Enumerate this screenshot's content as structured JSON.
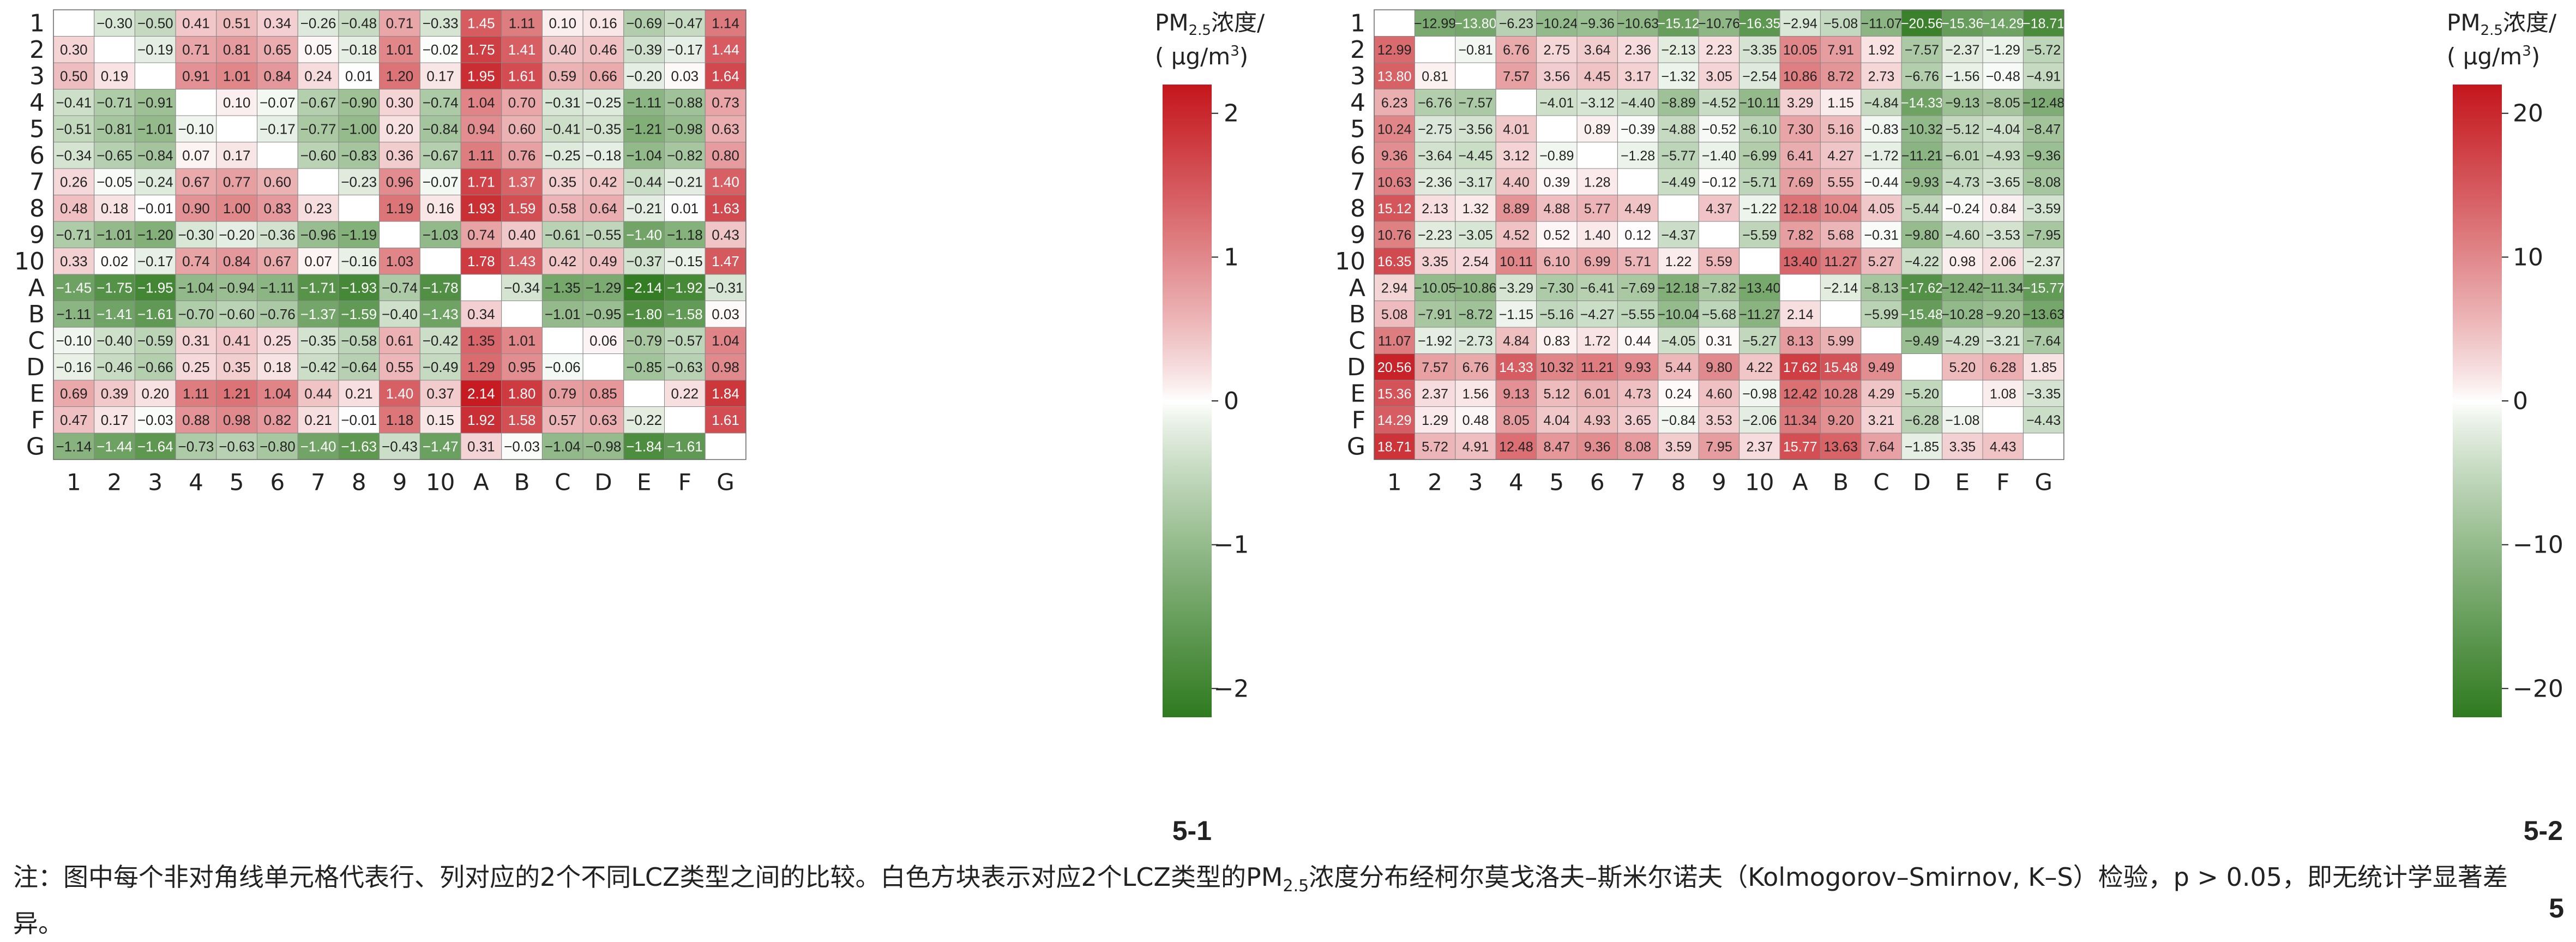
{
  "chart_data": [
    {
      "type": "heatmap",
      "panel_label": "5-1",
      "colorbar_title": "PM2.5浓度/ (μg/m3)",
      "colorbar_ticks": [
        "2",
        "1",
        "0",
        "−1",
        "−2"
      ],
      "colorbar_tick_values": [
        2,
        1,
        0,
        -1,
        -2
      ],
      "vmin": -2.2,
      "vmax": 2.2,
      "row_labels": [
        "1",
        "2",
        "3",
        "4",
        "5",
        "6",
        "7",
        "8",
        "9",
        "10",
        "A",
        "B",
        "C",
        "D",
        "E",
        "F",
        "G"
      ],
      "col_labels": [
        "1",
        "2",
        "3",
        "4",
        "5",
        "6",
        "7",
        "8",
        "9",
        "10",
        "A",
        "B",
        "C",
        "D",
        "E",
        "F",
        "G"
      ],
      "cells": [
        [
          "",
          "−0.30",
          "−0.50",
          "0.41",
          "0.51",
          "0.34",
          "−0.26",
          "−0.48",
          "0.71",
          "−0.33",
          "1.45",
          "1.11",
          "0.10",
          "0.16",
          "−0.69",
          "−0.47",
          "1.14"
        ],
        [
          "0.30",
          "",
          "−0.19",
          "0.71",
          "0.81",
          "0.65",
          "0.05",
          "−0.18",
          "1.01",
          "−0.02",
          "1.75",
          "1.41",
          "0.40",
          "0.46",
          "−0.39",
          "−0.17",
          "1.44"
        ],
        [
          "0.50",
          "0.19",
          "",
          "0.91",
          "1.01",
          "0.84",
          "0.24",
          "0.01",
          "1.20",
          "0.17",
          "1.95",
          "1.61",
          "0.59",
          "0.66",
          "−0.20",
          "0.03",
          "1.64"
        ],
        [
          "−0.41",
          "−0.71",
          "−0.91",
          "",
          "0.10",
          "−0.07",
          "−0.67",
          "−0.90",
          "0.30",
          "−0.74",
          "1.04",
          "0.70",
          "−0.31",
          "−0.25",
          "−1.11",
          "−0.88",
          "0.73"
        ],
        [
          "−0.51",
          "−0.81",
          "−1.01",
          "−0.10",
          "",
          "−0.17",
          "−0.77",
          "−1.00",
          "0.20",
          "−0.84",
          "0.94",
          "0.60",
          "−0.41",
          "−0.35",
          "−1.21",
          "−0.98",
          "0.63"
        ],
        [
          "−0.34",
          "−0.65",
          "−0.84",
          "0.07",
          "0.17",
          "",
          "−0.60",
          "−0.83",
          "0.36",
          "−0.67",
          "1.11",
          "0.76",
          "−0.25",
          "−0.18",
          "−1.04",
          "−0.82",
          "0.80"
        ],
        [
          "0.26",
          "−0.05",
          "−0.24",
          "0.67",
          "0.77",
          "0.60",
          "",
          "−0.23",
          "0.96",
          "−0.07",
          "1.71",
          "1.37",
          "0.35",
          "0.42",
          "−0.44",
          "−0.21",
          "1.40"
        ],
        [
          "0.48",
          "0.18",
          "−0.01",
          "0.90",
          "1.00",
          "0.83",
          "0.23",
          "",
          "1.19",
          "0.16",
          "1.93",
          "1.59",
          "0.58",
          "0.64",
          "−0.21",
          "0.01",
          "1.63"
        ],
        [
          "−0.71",
          "−1.01",
          "−1.20",
          "−0.30",
          "−0.20",
          "−0.36",
          "−0.96",
          "−1.19",
          "",
          "−1.03",
          "0.74",
          "0.40",
          "−0.61",
          "−0.55",
          "−1.40",
          "−1.18",
          "0.43"
        ],
        [
          "0.33",
          "0.02",
          "−0.17",
          "0.74",
          "0.84",
          "0.67",
          "0.07",
          "−0.16",
          "1.03",
          "",
          "1.78",
          "1.43",
          "0.42",
          "0.49",
          "−0.37",
          "−0.15",
          "1.47"
        ],
        [
          "−1.45",
          "−1.75",
          "−1.95",
          "−1.04",
          "−0.94",
          "−1.11",
          "−1.71",
          "−1.93",
          "−0.74",
          "−1.78",
          "",
          "−0.34",
          "−1.35",
          "−1.29",
          "−2.14",
          "−1.92",
          "−0.31"
        ],
        [
          "−1.11",
          "−1.41",
          "−1.61",
          "−0.70",
          "−0.60",
          "−0.76",
          "−1.37",
          "−1.59",
          "−0.40",
          "−1.43",
          "0.34",
          "",
          "−1.01",
          "−0.95",
          "−1.80",
          "−1.58",
          "0.03"
        ],
        [
          "−0.10",
          "−0.40",
          "−0.59",
          "0.31",
          "0.41",
          "0.25",
          "−0.35",
          "−0.58",
          "0.61",
          "−0.42",
          "1.35",
          "1.01",
          "",
          "0.06",
          "−0.79",
          "−0.57",
          "1.04"
        ],
        [
          "−0.16",
          "−0.46",
          "−0.66",
          "0.25",
          "0.35",
          "0.18",
          "−0.42",
          "−0.64",
          "0.55",
          "−0.49",
          "1.29",
          "0.95",
          "−0.06",
          "",
          "−0.85",
          "−0.63",
          "0.98"
        ],
        [
          "0.69",
          "0.39",
          "0.20",
          "1.11",
          "1.21",
          "1.04",
          "0.44",
          "0.21",
          "1.40",
          "0.37",
          "2.14",
          "1.80",
          "0.79",
          "0.85",
          "",
          "0.22",
          "1.84"
        ],
        [
          "0.47",
          "0.17",
          "−0.03",
          "0.88",
          "0.98",
          "0.82",
          "0.21",
          "−0.01",
          "1.18",
          "0.15",
          "1.92",
          "1.58",
          "0.57",
          "0.63",
          "−0.22",
          "",
          "1.61"
        ],
        [
          "−1.14",
          "−1.44",
          "−1.64",
          "−0.73",
          "−0.63",
          "−0.80",
          "−1.40",
          "−1.63",
          "−0.43",
          "−1.47",
          "0.31",
          "−0.03",
          "−1.04",
          "−0.98",
          "−1.84",
          "−1.61",
          ""
        ]
      ]
    },
    {
      "type": "heatmap",
      "panel_label": "5-2",
      "colorbar_title": "PM2.5浓度/ (μg/m3)",
      "colorbar_ticks": [
        "20",
        "10",
        "0",
        "−10",
        "−20"
      ],
      "colorbar_tick_values": [
        20,
        10,
        0,
        -10,
        -20
      ],
      "vmin": -22,
      "vmax": 22,
      "row_labels": [
        "1",
        "2",
        "3",
        "4",
        "5",
        "6",
        "7",
        "8",
        "9",
        "10",
        "A",
        "B",
        "C",
        "D",
        "E",
        "F",
        "G"
      ],
      "col_labels": [
        "1",
        "2",
        "3",
        "4",
        "5",
        "6",
        "7",
        "8",
        "9",
        "10",
        "A",
        "B",
        "C",
        "D",
        "E",
        "F",
        "G"
      ],
      "cells": [
        [
          "",
          "−12.99",
          "−13.80",
          "−6.23",
          "−10.24",
          "−9.36",
          "−10.63",
          "−15.12",
          "−10.76",
          "−16.35",
          "−2.94",
          "−5.08",
          "−11.07",
          "−20.56",
          "−15.36",
          "−14.29",
          "−18.71"
        ],
        [
          "12.99",
          "",
          "−0.81",
          "6.76",
          "2.75",
          "3.64",
          "2.36",
          "−2.13",
          "2.23",
          "−3.35",
          "10.05",
          "7.91",
          "1.92",
          "−7.57",
          "−2.37",
          "−1.29",
          "−5.72"
        ],
        [
          "13.80",
          "0.81",
          "",
          "7.57",
          "3.56",
          "4.45",
          "3.17",
          "−1.32",
          "3.05",
          "−2.54",
          "10.86",
          "8.72",
          "2.73",
          "−6.76",
          "−1.56",
          "−0.48",
          "−4.91"
        ],
        [
          "6.23",
          "−6.76",
          "−7.57",
          "",
          "−4.01",
          "−3.12",
          "−4.40",
          "−8.89",
          "−4.52",
          "−10.11",
          "3.29",
          "1.15",
          "−4.84",
          "−14.33",
          "−9.13",
          "−8.05",
          "−12.48"
        ],
        [
          "10.24",
          "−2.75",
          "−3.56",
          "4.01",
          "",
          "0.89",
          "−0.39",
          "−4.88",
          "−0.52",
          "−6.10",
          "7.30",
          "5.16",
          "−0.83",
          "−10.32",
          "−5.12",
          "−4.04",
          "−8.47"
        ],
        [
          "9.36",
          "−3.64",
          "−4.45",
          "3.12",
          "−0.89",
          "",
          "−1.28",
          "−5.77",
          "−1.40",
          "−6.99",
          "6.41",
          "4.27",
          "−1.72",
          "−11.21",
          "−6.01",
          "−4.93",
          "−9.36"
        ],
        [
          "10.63",
          "−2.36",
          "−3.17",
          "4.40",
          "0.39",
          "1.28",
          "",
          "−4.49",
          "−0.12",
          "−5.71",
          "7.69",
          "5.55",
          "−0.44",
          "−9.93",
          "−4.73",
          "−3.65",
          "−8.08"
        ],
        [
          "15.12",
          "2.13",
          "1.32",
          "8.89",
          "4.88",
          "5.77",
          "4.49",
          "",
          "4.37",
          "−1.22",
          "12.18",
          "10.04",
          "4.05",
          "−5.44",
          "−0.24",
          "0.84",
          "−3.59"
        ],
        [
          "10.76",
          "−2.23",
          "−3.05",
          "4.52",
          "0.52",
          "1.40",
          "0.12",
          "−4.37",
          "",
          "−5.59",
          "7.82",
          "5.68",
          "−0.31",
          "−9.80",
          "−4.60",
          "−3.53",
          "−7.95"
        ],
        [
          "16.35",
          "3.35",
          "2.54",
          "10.11",
          "6.10",
          "6.99",
          "5.71",
          "1.22",
          "5.59",
          "",
          "13.40",
          "11.27",
          "5.27",
          "−4.22",
          "0.98",
          "2.06",
          "−2.37"
        ],
        [
          "2.94",
          "−10.05",
          "−10.86",
          "−3.29",
          "−7.30",
          "−6.41",
          "−7.69",
          "−12.18",
          "−7.82",
          "−13.40",
          "",
          "−2.14",
          "−8.13",
          "−17.62",
          "−12.42",
          "−11.34",
          "−15.77"
        ],
        [
          "5.08",
          "−7.91",
          "−8.72",
          "−1.15",
          "−5.16",
          "−4.27",
          "−5.55",
          "−10.04",
          "−5.68",
          "−11.27",
          "2.14",
          "",
          "−5.99",
          "−15.48",
          "−10.28",
          "−9.20",
          "−13.63"
        ],
        [
          "11.07",
          "−1.92",
          "−2.73",
          "4.84",
          "0.83",
          "1.72",
          "0.44",
          "−4.05",
          "0.31",
          "−5.27",
          "8.13",
          "5.99",
          "",
          "−9.49",
          "−4.29",
          "−3.21",
          "−7.64"
        ],
        [
          "20.56",
          "7.57",
          "6.76",
          "14.33",
          "10.32",
          "11.21",
          "9.93",
          "5.44",
          "9.80",
          "4.22",
          "17.62",
          "15.48",
          "9.49",
          "",
          "5.20",
          "6.28",
          "1.85"
        ],
        [
          "15.36",
          "2.37",
          "1.56",
          "9.13",
          "5.12",
          "6.01",
          "4.73",
          "0.24",
          "4.60",
          "−0.98",
          "12.42",
          "10.28",
          "4.29",
          "−5.20",
          "",
          "1.08",
          "−3.35"
        ],
        [
          "14.29",
          "1.29",
          "0.48",
          "8.05",
          "4.04",
          "4.93",
          "3.65",
          "−0.84",
          "3.53",
          "−2.06",
          "11.34",
          "9.20",
          "3.21",
          "−6.28",
          "−1.08",
          "",
          "−4.43"
        ],
        [
          "18.71",
          "5.72",
          "4.91",
          "12.48",
          "8.47",
          "9.36",
          "8.08",
          "3.59",
          "7.95",
          "2.37",
          "15.77",
          "13.63",
          "7.64",
          "−1.85",
          "3.35",
          "4.43",
          ""
        ]
      ]
    }
  ],
  "colors": {
    "positive": "#c4161c",
    "negative": "#2f7a1f",
    "zero": "#ffffff",
    "grid": "#888888"
  },
  "note": {
    "prefix": "注：图中每个非对角线单元格代表行、列对应的2个不同LCZ类型之间的比较。白色方块表示对应2个LCZ类型的PM",
    "sub": "2.5",
    "suffix": "浓度分布经柯尔莫戈洛夫–斯米尔诺夫（Kolmogorov–Smirnov, K–S）检验，p > 0.05，即无统计学显著差异。"
  },
  "page_number": "5"
}
